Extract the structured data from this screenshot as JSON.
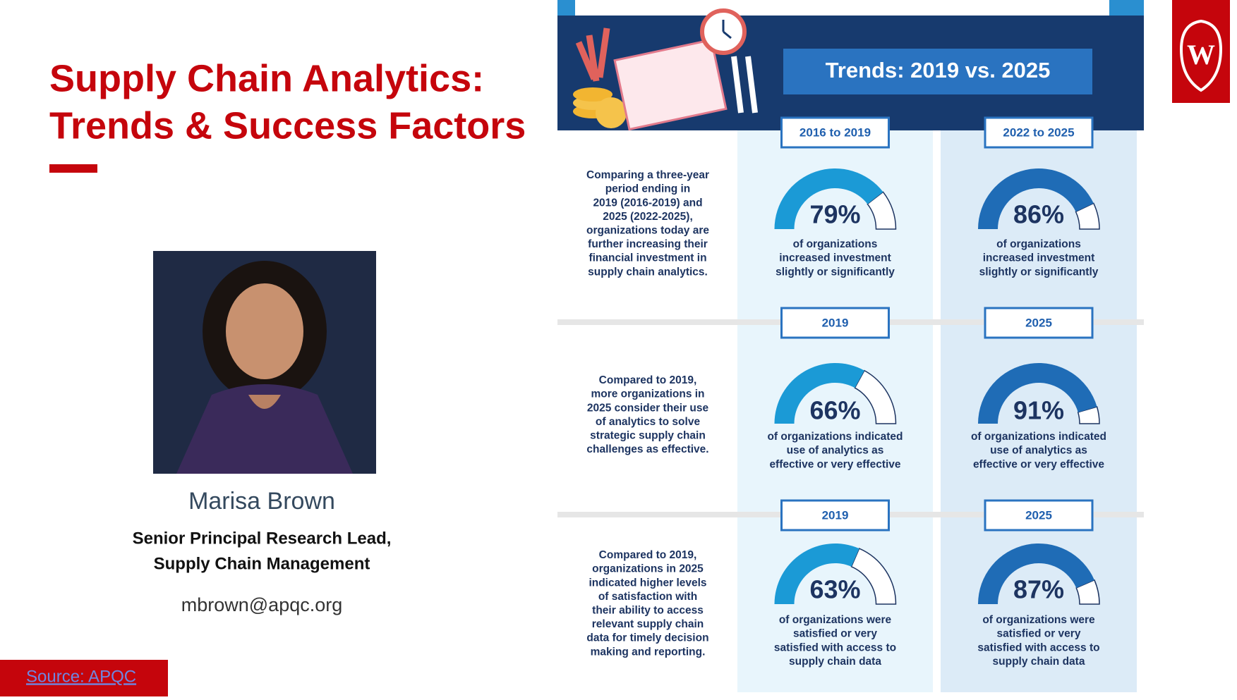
{
  "slide": {
    "title_lines": [
      "Supply Chain Analytics:",
      "Trends & Success Factors"
    ],
    "presenter": {
      "name": "Marisa Brown",
      "role_lines": [
        "Senior Principal Research Lead,",
        "Supply Chain Management"
      ],
      "email": "mbrown@apqc.org"
    },
    "source": "Source: APQC"
  },
  "infographic": {
    "title": "Trends: 2019 vs. 2025",
    "rows": [
      {
        "description_lines": [
          "Comparing a three-year",
          "period ending in",
          "2019 (2016-2019) and",
          "2025 (2022-2025),",
          "organizations today are",
          "further increasing their",
          "financial investment in",
          "supply chain analytics."
        ],
        "panels": [
          {
            "period": "2016 to 2019",
            "gauge": {
              "value": 79,
              "label": "79%"
            },
            "caption_lines": [
              "of organizations",
              "increased investment",
              "slightly or significantly"
            ]
          },
          {
            "period": "2022 to 2025",
            "gauge": {
              "value": 86,
              "label": "86%"
            },
            "caption_lines": [
              "of organizations",
              "increased investment",
              "slightly or significantly"
            ]
          }
        ]
      },
      {
        "description_lines": [
          "Compared to 2019,",
          "more organizations in",
          "2025 consider their use",
          "of analytics to solve",
          "strategic supply chain",
          "challenges as effective."
        ],
        "panels": [
          {
            "period": "2019",
            "gauge": {
              "value": 66,
              "label": "66%"
            },
            "caption_lines": [
              "of organizations indicated",
              "use of analytics as",
              "effective or very effective"
            ]
          },
          {
            "period": "2025",
            "gauge": {
              "value": 91,
              "label": "91%"
            },
            "caption_lines": [
              "of organizations indicated",
              "use of analytics as",
              "effective or very effective"
            ]
          }
        ]
      },
      {
        "description_lines": [
          "Compared to 2019,",
          "organizations in 2025",
          "indicated higher levels",
          "of satisfaction with",
          "their ability to access",
          "relevant supply chain",
          "data for timely decision",
          "making and reporting."
        ],
        "panels": [
          {
            "period": "2019",
            "gauge": {
              "value": 63,
              "label": "63%"
            },
            "caption_lines": [
              "of organizations were",
              "satisfied or very",
              "satisfied with access to",
              "supply chain data"
            ]
          },
          {
            "period": "2025",
            "gauge": {
              "value": 87,
              "label": "87%"
            },
            "caption_lines": [
              "of organizations were",
              "satisfied or very",
              "satisfied with access to",
              "supply chain data"
            ]
          }
        ]
      }
    ]
  }
}
